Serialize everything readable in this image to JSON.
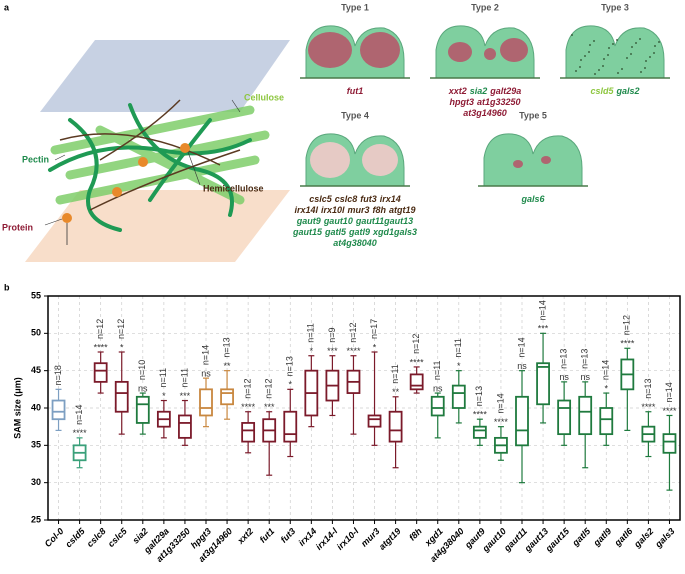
{
  "panel_a": {
    "label": "a",
    "diagram_labels": [
      {
        "text": "Cellulose",
        "color": "#8dc63f"
      },
      {
        "text": "Pectin",
        "color": "#1f8a4c"
      },
      {
        "text": "Hemicellulose",
        "color": "#4a2a12"
      },
      {
        "text": "Protein",
        "color": "#8e1b35"
      }
    ],
    "types": [
      {
        "title": "Type 1",
        "lines": [
          [
            {
              "text": "fut1",
              "color": "#8e1b35"
            }
          ]
        ]
      },
      {
        "title": "Type 2",
        "lines": [
          [
            {
              "text": "xxt2",
              "color": "#8e1b35"
            },
            {
              "text": "sia2",
              "color": "#1f8a4c"
            },
            {
              "text": "galt29a",
              "color": "#8e1b35"
            }
          ],
          [
            {
              "text": "hpgt3",
              "color": "#8e1b35"
            },
            {
              "text": "at1g33250",
              "color": "#8e1b35"
            }
          ],
          [
            {
              "text": "at3g14960",
              "color": "#8e1b35"
            }
          ]
        ]
      },
      {
        "title": "Type 3",
        "lines": [
          [
            {
              "text": "csld5",
              "color": "#8dc63f"
            },
            {
              "text": "gals2",
              "color": "#1f8a4c"
            }
          ]
        ]
      },
      {
        "title": "Type 4",
        "lines": [
          [
            {
              "text": "cslc5",
              "color": "#4a2a12"
            },
            {
              "text": "cslc8",
              "color": "#4a2a12"
            },
            {
              "text": "fut3",
              "color": "#4a2a12"
            },
            {
              "text": "irx14",
              "color": "#4a2a12"
            }
          ],
          [
            {
              "text": "irx14l",
              "color": "#4a2a12"
            },
            {
              "text": "irx10l",
              "color": "#4a2a12"
            },
            {
              "text": "mur3",
              "color": "#4a2a12"
            },
            {
              "text": "f8h",
              "color": "#4a2a12"
            },
            {
              "text": "atgt19",
              "color": "#4a2a12"
            }
          ],
          [
            {
              "text": "gaut9",
              "color": "#1f8a4c"
            },
            {
              "text": "gaut10",
              "color": "#1f8a4c"
            },
            {
              "text": "gaut11gaut13",
              "color": "#1f8a4c"
            }
          ],
          [
            {
              "text": "gaut15",
              "color": "#1f8a4c"
            },
            {
              "text": "gatl5",
              "color": "#1f8a4c"
            },
            {
              "text": "gatl9",
              "color": "#1f8a4c"
            },
            {
              "text": "xgd1gals3",
              "color": "#1f8a4c"
            }
          ],
          [
            {
              "text": "at4g38040",
              "color": "#1f8a4c"
            }
          ]
        ]
      },
      {
        "title": "Type 5",
        "lines": [
          [
            {
              "text": "gals6",
              "color": "#1f8a4c"
            }
          ]
        ]
      }
    ]
  },
  "chart_data": {
    "type": "box",
    "label": "b",
    "ylabel": "SAM size (μm)",
    "ylim": [
      25,
      55
    ],
    "yticks": [
      25,
      30,
      35,
      40,
      45,
      50,
      55
    ],
    "grid": true,
    "categories": [
      "Col-0",
      "csld5",
      "cslc8",
      "cslc5",
      "sia2",
      "galt29a",
      "at1g33250",
      "hpgt3",
      "at3g14960",
      "xxt2",
      "fut1",
      "fut3",
      "irx14",
      "irx14-l",
      "irx10-l",
      "mur3",
      "atgt19",
      "f8h",
      "xgd1",
      "at4g38040",
      "gaut9",
      "gaut10",
      "gaut11",
      "gaut13",
      "gaut15",
      "gatl5",
      "gatl9",
      "gatl6",
      "gals2",
      "gals3"
    ],
    "colors": [
      "#7d9fc2",
      "#3aa07a",
      "#7b1a2a",
      "#7b1a2a",
      "#1f7a3e",
      "#7b1a2a",
      "#7b1a2a",
      "#c8873f",
      "#c8873f",
      "#7b1a2a",
      "#7b1a2a",
      "#7b1a2a",
      "#7b1a2a",
      "#7b1a2a",
      "#7b1a2a",
      "#7b1a2a",
      "#7b1a2a",
      "#7b1a2a",
      "#1f7a3e",
      "#1f7a3e",
      "#1f7a3e",
      "#1f7a3e",
      "#1f7a3e",
      "#1f7a3e",
      "#1f7a3e",
      "#1f7a3e",
      "#1f7a3e",
      "#1f7a3e",
      "#1f7a3e",
      "#1f7a3e"
    ],
    "boxes": [
      {
        "min": 37,
        "q1": 38.5,
        "median": 39.5,
        "q3": 41,
        "max": 42.5
      },
      {
        "min": 32,
        "q1": 33,
        "median": 34,
        "q3": 35,
        "max": 36
      },
      {
        "min": 42,
        "q1": 43.5,
        "median": 45,
        "q3": 46,
        "max": 47.5
      },
      {
        "min": 36.5,
        "q1": 39.5,
        "median": 42,
        "q3": 43.5,
        "max": 47.5
      },
      {
        "min": 36.5,
        "q1": 38,
        "median": 40.5,
        "q3": 41.5,
        "max": 42
      },
      {
        "min": 36,
        "q1": 37.5,
        "median": 38.5,
        "q3": 39.5,
        "max": 41
      },
      {
        "min": 35,
        "q1": 36,
        "median": 38,
        "q3": 39,
        "max": 41
      },
      {
        "min": 37.5,
        "q1": 39,
        "median": 40,
        "q3": 42.5,
        "max": 44
      },
      {
        "min": 38.5,
        "q1": 40.5,
        "median": 42,
        "q3": 42.5,
        "max": 45
      },
      {
        "min": 34,
        "q1": 35.5,
        "median": 37,
        "q3": 38,
        "max": 39.5
      },
      {
        "min": 31,
        "q1": 35.5,
        "median": 37,
        "q3": 38.5,
        "max": 39.5
      },
      {
        "min": 33.5,
        "q1": 35.5,
        "median": 36.5,
        "q3": 39.5,
        "max": 42.5
      },
      {
        "min": 37.5,
        "q1": 39,
        "median": 42,
        "q3": 45,
        "max": 47
      },
      {
        "min": 39,
        "q1": 41,
        "median": 43,
        "q3": 45,
        "max": 47
      },
      {
        "min": 36.5,
        "q1": 42,
        "median": 43.5,
        "q3": 45,
        "max": 47
      },
      {
        "min": 35,
        "q1": 37.5,
        "median": 38.5,
        "q3": 39,
        "max": 47.5
      },
      {
        "min": 32,
        "q1": 35.5,
        "median": 37,
        "q3": 39.5,
        "max": 41.5
      },
      {
        "min": 42,
        "q1": 42.5,
        "median": 43,
        "q3": 44.5,
        "max": 45.5
      },
      {
        "min": 36,
        "q1": 39,
        "median": 40,
        "q3": 41.5,
        "max": 42
      },
      {
        "min": 38,
        "q1": 40,
        "median": 42,
        "q3": 43,
        "max": 45
      },
      {
        "min": 35,
        "q1": 36,
        "median": 37,
        "q3": 37.5,
        "max": 38.5
      },
      {
        "min": 33,
        "q1": 34,
        "median": 35,
        "q3": 36,
        "max": 37.5
      },
      {
        "min": 30,
        "q1": 35,
        "median": 37,
        "q3": 41.5,
        "max": 45
      },
      {
        "min": 38,
        "q1": 40.5,
        "median": 45.5,
        "q3": 46,
        "max": 50
      },
      {
        "min": 35,
        "q1": 36.5,
        "median": 40,
        "q3": 41,
        "max": 43.5
      },
      {
        "min": 32,
        "q1": 36.5,
        "median": 39.5,
        "q3": 41.5,
        "max": 43.5
      },
      {
        "min": 35,
        "q1": 36.5,
        "median": 38.5,
        "q3": 40,
        "max": 42
      },
      {
        "min": 37,
        "q1": 42.5,
        "median": 44.5,
        "q3": 46.5,
        "max": 48
      },
      {
        "min": 33.5,
        "q1": 35.5,
        "median": 36.5,
        "q3": 37.5,
        "max": 39.5
      },
      {
        "min": 29,
        "q1": 34,
        "median": 35.5,
        "q3": 36.5,
        "max": 39
      }
    ],
    "n_labels": [
      "n=18",
      "n=14",
      "n=12",
      "n=12",
      "n=10",
      "n=11",
      "n=11",
      "n=14",
      "n=13",
      "n=12",
      "n=12",
      "n=13",
      "n=11",
      "n=9",
      "n=12",
      "n=17",
      "n=11",
      "n=12",
      "n=11",
      "n=11",
      "n=13",
      "n=14",
      "n=14",
      "n=14",
      "n=13",
      "n=13",
      "n=14",
      "n=12",
      "n=13",
      "n=14"
    ],
    "significance": [
      null,
      "****",
      "****",
      "*",
      "ns",
      "*",
      "***",
      "ns",
      "**",
      "****",
      "***",
      "*",
      "*",
      "***",
      "****",
      "*",
      "**",
      "****",
      "ns",
      "*",
      "****",
      "****",
      "ns",
      "***",
      "ns",
      "ns",
      "*",
      "****",
      "****",
      "****"
    ]
  }
}
